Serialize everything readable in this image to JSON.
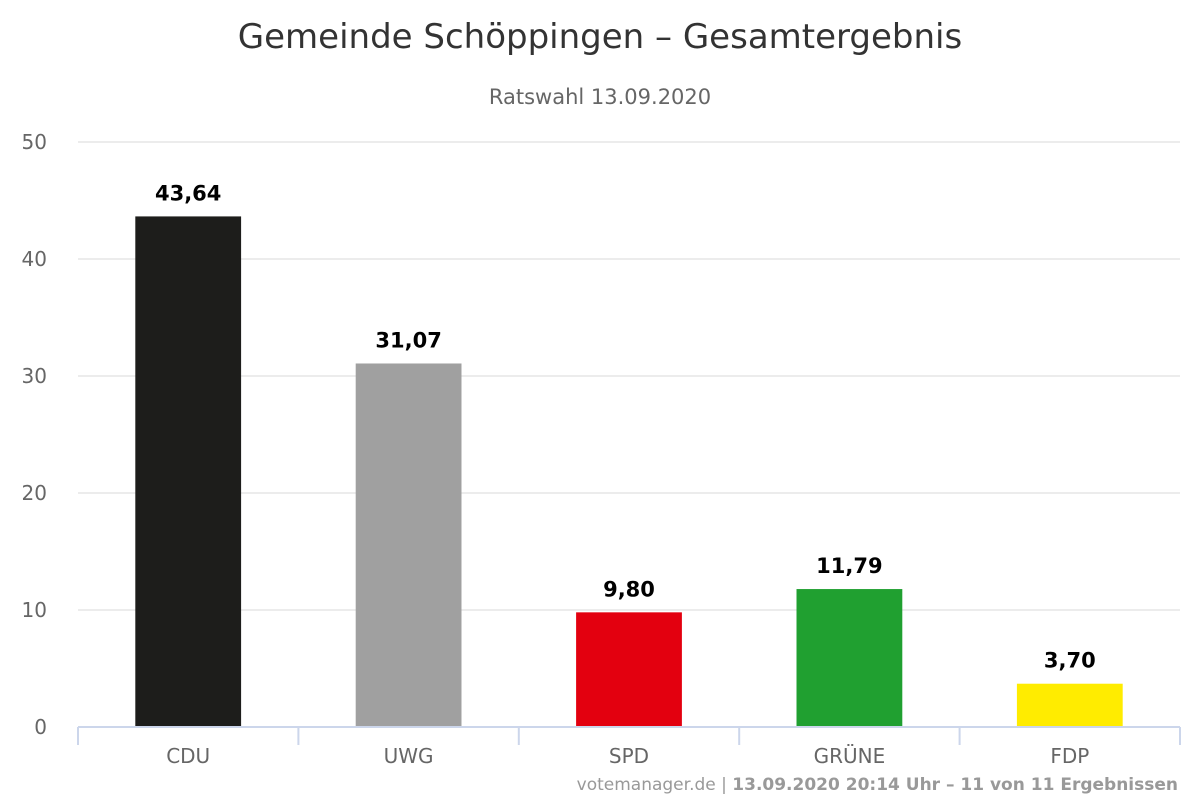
{
  "chart_data": {
    "type": "bar",
    "title": "Gemeinde Schöppingen – Gesamtergebnis",
    "subtitle": "Ratswahl 13.09.2020",
    "categories": [
      "CDU",
      "UWG",
      "SPD",
      "GRÜNE",
      "FDP"
    ],
    "values": [
      43.64,
      31.07,
      9.8,
      11.79,
      3.7
    ],
    "value_labels": [
      "43,64",
      "31,07",
      "9,80",
      "11,79",
      "3,70"
    ],
    "colors": [
      "#1d1d1b",
      "#a0a0a0",
      "#e3000f",
      "#20a030",
      "#ffec00"
    ],
    "ylim": [
      0,
      50
    ],
    "y_ticks": [
      0,
      10,
      20,
      30,
      40,
      50
    ],
    "xlabel": "",
    "ylabel": "",
    "grid": true,
    "legend": "none"
  },
  "footer": {
    "source": "votemanager.de",
    "separator": " | ",
    "status": "13.09.2020 20:14 Uhr – 11 von 11 Ergebnissen"
  }
}
